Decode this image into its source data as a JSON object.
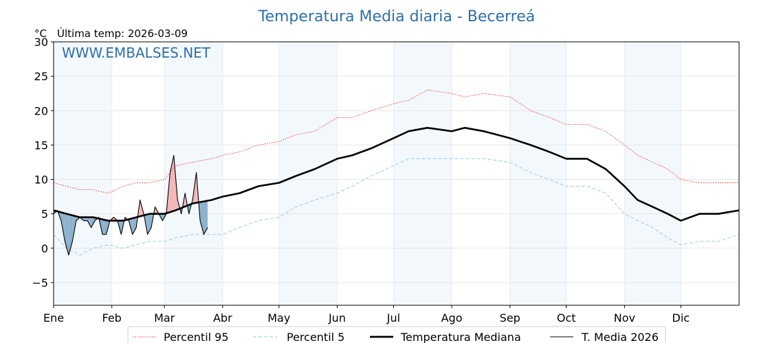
{
  "chart_data": {
    "type": "line",
    "title": "Temperatura Media diaria - Becerreá",
    "unit_label": "°C",
    "subtitle": "Última temp: 2026-03-09",
    "watermark": "WWW.EMBALSES.NET",
    "ylim": [
      -8.3,
      30
    ],
    "yticks": [
      -5,
      0,
      5,
      10,
      15,
      20,
      25,
      30
    ],
    "ytick_labels": [
      "−5",
      "0",
      "5",
      "10",
      "15",
      "20",
      "25",
      "30"
    ],
    "xlim": [
      1,
      366
    ],
    "months": [
      {
        "label": "Ene",
        "start_day": 1
      },
      {
        "label": "Feb",
        "start_day": 32
      },
      {
        "label": "Mar",
        "start_day": 60
      },
      {
        "label": "Abr",
        "start_day": 91
      },
      {
        "label": "May",
        "start_day": 121
      },
      {
        "label": "Jun",
        "start_day": 152
      },
      {
        "label": "Jul",
        "start_day": 182
      },
      {
        "label": "Ago",
        "start_day": 213
      },
      {
        "label": "Sep",
        "start_day": 244
      },
      {
        "label": "Oct",
        "start_day": 274
      },
      {
        "label": "Nov",
        "start_day": 305
      },
      {
        "label": "Dic",
        "start_day": 335
      }
    ],
    "shaded_months": [
      "Ene",
      "Mar",
      "May",
      "Jul",
      "Sep",
      "Nov"
    ],
    "x_unit": "day of year",
    "series": [
      {
        "name": "Percentil 95",
        "style": "dotted",
        "color": "#e8291c",
        "points": [
          [
            1,
            9.5
          ],
          [
            8,
            9
          ],
          [
            15,
            8.5
          ],
          [
            22,
            8.5
          ],
          [
            30,
            8
          ],
          [
            38,
            9
          ],
          [
            45,
            9.5
          ],
          [
            52,
            9.5
          ],
          [
            60,
            10
          ],
          [
            66,
            12
          ],
          [
            75,
            12.5
          ],
          [
            85,
            13
          ],
          [
            91,
            13.5
          ],
          [
            100,
            14
          ],
          [
            110,
            15
          ],
          [
            121,
            15.5
          ],
          [
            130,
            16.5
          ],
          [
            140,
            17
          ],
          [
            152,
            19
          ],
          [
            160,
            19
          ],
          [
            170,
            20
          ],
          [
            182,
            21
          ],
          [
            190,
            21.5
          ],
          [
            200,
            23
          ],
          [
            213,
            22.5
          ],
          [
            220,
            22
          ],
          [
            230,
            22.5
          ],
          [
            244,
            22
          ],
          [
            255,
            20
          ],
          [
            265,
            19
          ],
          [
            274,
            18
          ],
          [
            285,
            18
          ],
          [
            295,
            17
          ],
          [
            305,
            15
          ],
          [
            312,
            13.5
          ],
          [
            320,
            12.5
          ],
          [
            328,
            11.5
          ],
          [
            335,
            10
          ],
          [
            345,
            9.5
          ],
          [
            355,
            9.5
          ],
          [
            366,
            9.5
          ]
        ]
      },
      {
        "name": "Percentil 5",
        "style": "dashed",
        "color": "#a6d3e3",
        "points": [
          [
            1,
            2
          ],
          [
            8,
            0
          ],
          [
            15,
            -1
          ],
          [
            22,
            0
          ],
          [
            30,
            0.5
          ],
          [
            38,
            0
          ],
          [
            45,
            0.5
          ],
          [
            52,
            1
          ],
          [
            60,
            1
          ],
          [
            66,
            1.5
          ],
          [
            75,
            2
          ],
          [
            85,
            2
          ],
          [
            91,
            2
          ],
          [
            100,
            3
          ],
          [
            110,
            4
          ],
          [
            121,
            4.5
          ],
          [
            130,
            6
          ],
          [
            140,
            7
          ],
          [
            152,
            8
          ],
          [
            160,
            9
          ],
          [
            170,
            10.5
          ],
          [
            182,
            12
          ],
          [
            190,
            13
          ],
          [
            200,
            13
          ],
          [
            213,
            13
          ],
          [
            220,
            13
          ],
          [
            230,
            13
          ],
          [
            244,
            12.5
          ],
          [
            255,
            11
          ],
          [
            265,
            10
          ],
          [
            274,
            9
          ],
          [
            285,
            9
          ],
          [
            295,
            8
          ],
          [
            305,
            5
          ],
          [
            312,
            4
          ],
          [
            320,
            3
          ],
          [
            328,
            1.5
          ],
          [
            335,
            0.5
          ],
          [
            345,
            1
          ],
          [
            355,
            1
          ],
          [
            366,
            2
          ]
        ]
      },
      {
        "name": "Temperatura Mediana",
        "style": "solid-bold",
        "color": "#000000",
        "points": [
          [
            1,
            5.5
          ],
          [
            8,
            5
          ],
          [
            15,
            4.5
          ],
          [
            22,
            4.5
          ],
          [
            30,
            4
          ],
          [
            38,
            4
          ],
          [
            45,
            4.5
          ],
          [
            52,
            5
          ],
          [
            60,
            5
          ],
          [
            66,
            5.5
          ],
          [
            75,
            6.5
          ],
          [
            85,
            7
          ],
          [
            91,
            7.5
          ],
          [
            100,
            8
          ],
          [
            110,
            9
          ],
          [
            121,
            9.5
          ],
          [
            130,
            10.5
          ],
          [
            140,
            11.5
          ],
          [
            152,
            13
          ],
          [
            160,
            13.5
          ],
          [
            170,
            14.5
          ],
          [
            182,
            16
          ],
          [
            190,
            17
          ],
          [
            200,
            17.5
          ],
          [
            213,
            17
          ],
          [
            220,
            17.5
          ],
          [
            230,
            17
          ],
          [
            244,
            16
          ],
          [
            255,
            15
          ],
          [
            265,
            14
          ],
          [
            274,
            13
          ],
          [
            285,
            13
          ],
          [
            295,
            11.5
          ],
          [
            305,
            9
          ],
          [
            312,
            7
          ],
          [
            320,
            6
          ],
          [
            328,
            5
          ],
          [
            335,
            4
          ],
          [
            345,
            5
          ],
          [
            355,
            5
          ],
          [
            366,
            5.5
          ]
        ]
      },
      {
        "name": "T. Media 2026",
        "style": "solid-thin",
        "color": "#000000",
        "points": [
          [
            1,
            5
          ],
          [
            3,
            5.5
          ],
          [
            5,
            4
          ],
          [
            7,
            1
          ],
          [
            9,
            -1
          ],
          [
            11,
            1
          ],
          [
            13,
            4
          ],
          [
            15,
            4.5
          ],
          [
            17,
            4
          ],
          [
            19,
            4
          ],
          [
            21,
            3
          ],
          [
            23,
            4
          ],
          [
            25,
            4.5
          ],
          [
            27,
            2
          ],
          [
            29,
            2
          ],
          [
            31,
            4
          ],
          [
            33,
            4.5
          ],
          [
            35,
            4
          ],
          [
            37,
            2
          ],
          [
            39,
            4.5
          ],
          [
            41,
            4
          ],
          [
            43,
            2
          ],
          [
            45,
            3
          ],
          [
            47,
            7
          ],
          [
            49,
            5
          ],
          [
            51,
            2
          ],
          [
            53,
            3
          ],
          [
            55,
            6
          ],
          [
            57,
            5
          ],
          [
            59,
            4
          ],
          [
            61,
            5
          ],
          [
            63,
            11
          ],
          [
            65,
            13.5
          ],
          [
            67,
            7
          ],
          [
            69,
            5
          ],
          [
            71,
            8
          ],
          [
            73,
            5
          ],
          [
            75,
            7
          ],
          [
            77,
            11
          ],
          [
            79,
            4
          ],
          [
            81,
            2
          ],
          [
            83,
            3
          ]
        ]
      }
    ],
    "fill_between": {
      "between": [
        "T. Media 2026",
        "Temperatura Mediana"
      ],
      "above_color": "#f4a3a3",
      "below_color": "#7aa6c6"
    },
    "legend": {
      "placement": "bottom-center"
    },
    "grid": true
  }
}
